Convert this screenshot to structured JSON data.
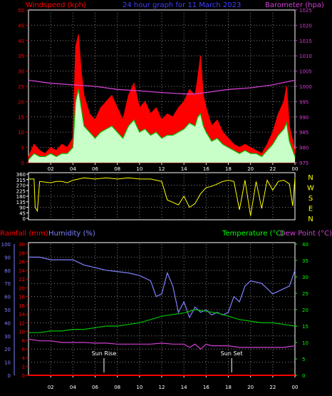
{
  "colors": {
    "background": "#000000",
    "wind": "#ff0000",
    "gust_fill": "#ff0000",
    "wind_light": "#c8ffc8",
    "wind_avg": "#00c000",
    "pressure": "#d040d0",
    "direction": "#ffff00",
    "humidity": "#8080ff",
    "temperature": "#00c000",
    "dewpoint": "#d040d0",
    "rainfall": "#ff0000",
    "right_green": "#00ff00",
    "white": "#ffffff",
    "title_blue": "#4040ff"
  },
  "chart_data": [
    {
      "type": "area",
      "title": "24 hour graph for  11 March 2023",
      "left_axis_label": "Windspeed (kph)",
      "right_axis_label": "Barometer (hpa)",
      "x_tick_labels": [
        "02",
        "04",
        "06",
        "08",
        "10",
        "12",
        "14",
        "16",
        "18",
        "20",
        "22",
        "00"
      ],
      "x_range": [
        0,
        24
      ],
      "y_left_ticks": [
        0,
        5,
        10,
        15,
        20,
        25,
        30,
        35,
        40,
        45,
        50
      ],
      "y_left_range": [
        0,
        50
      ],
      "y_right_ticks": [
        975,
        980,
        985,
        990,
        995,
        1000,
        1005,
        1010,
        1015,
        1020,
        1025
      ],
      "y_right_range": [
        975,
        1025
      ],
      "grid": true,
      "series": [
        {
          "name": "Gust",
          "x": [
            0,
            0.5,
            1,
            1.5,
            2,
            2.5,
            3,
            3.5,
            4,
            4.25,
            4.5,
            4.75,
            5,
            5.5,
            6,
            6.5,
            7,
            7.5,
            8,
            8.5,
            9,
            9.5,
            10,
            10.5,
            11,
            11.5,
            12,
            12.5,
            13,
            13.5,
            14,
            14.5,
            15,
            15.25,
            15.5,
            15.75,
            16,
            16.5,
            17,
            17.5,
            18,
            18.5,
            19,
            19.5,
            20,
            20.5,
            21,
            21.5,
            22,
            22.5,
            23,
            23.25,
            23.5,
            24
          ],
          "values": [
            2,
            6,
            4,
            3,
            5,
            4,
            6,
            5,
            8,
            38,
            42,
            30,
            22,
            16,
            14,
            18,
            20,
            22,
            18,
            14,
            22,
            26,
            18,
            20,
            16,
            18,
            14,
            16,
            15,
            18,
            20,
            24,
            22,
            28,
            35,
            22,
            18,
            12,
            14,
            10,
            8,
            6,
            5,
            6,
            5,
            4,
            3,
            6,
            10,
            16,
            20,
            25,
            12,
            4
          ]
        },
        {
          "name": "Wind",
          "x": [
            0,
            0.5,
            1,
            1.5,
            2,
            2.5,
            3,
            3.5,
            4,
            4.25,
            4.5,
            4.75,
            5,
            5.5,
            6,
            6.5,
            7,
            7.5,
            8,
            8.5,
            9,
            9.5,
            10,
            10.5,
            11,
            11.5,
            12,
            12.5,
            13,
            13.5,
            14,
            14.5,
            15,
            15.25,
            15.5,
            15.75,
            16,
            16.5,
            17,
            17.5,
            18,
            18.5,
            19,
            19.5,
            20,
            20.5,
            21,
            21.5,
            22,
            22.5,
            23,
            23.25,
            23.5,
            24
          ],
          "values": [
            1,
            3,
            2,
            2,
            3,
            2,
            3,
            3,
            5,
            20,
            24,
            18,
            12,
            10,
            8,
            10,
            11,
            12,
            10,
            8,
            12,
            14,
            10,
            11,
            9,
            10,
            8,
            9,
            9,
            10,
            11,
            13,
            12,
            15,
            16,
            12,
            10,
            7,
            8,
            6,
            5,
            4,
            3,
            4,
            3,
            3,
            2,
            4,
            6,
            9,
            11,
            13,
            7,
            2
          ]
        },
        {
          "name": "Pressure",
          "x": [
            0,
            2,
            4,
            6,
            8,
            10,
            12,
            14,
            15,
            16,
            18,
            20,
            22,
            24
          ],
          "values": [
            1002,
            1001,
            1000.5,
            1000,
            999,
            998.5,
            998,
            997.5,
            997.5,
            998,
            999,
            999.5,
            1000.5,
            1002
          ]
        }
      ]
    },
    {
      "type": "line",
      "right_labels": [
        "N",
        "W",
        "S",
        "E",
        "N"
      ],
      "x_range": [
        0,
        24
      ],
      "y_ticks": [
        0,
        45,
        90,
        135,
        180,
        225,
        270,
        315,
        360
      ],
      "y_range": [
        0,
        360
      ],
      "grid": true,
      "series": [
        {
          "name": "Direction",
          "x": [
            0,
            0.5,
            0.6,
            0.8,
            1,
            2,
            2.5,
            3,
            3.5,
            4,
            5,
            6,
            7,
            8,
            9,
            10,
            11,
            11.5,
            12,
            12.5,
            13,
            13.5,
            14,
            14.5,
            15,
            15.5,
            16,
            16.5,
            17,
            17.5,
            18,
            18.5,
            19,
            19.5,
            20,
            20.5,
            21,
            21.5,
            22,
            22.5,
            23,
            23.5,
            23.8,
            24
          ],
          "values": [
            320,
            320,
            90,
            60,
            300,
            290,
            300,
            300,
            290,
            310,
            330,
            320,
            330,
            320,
            330,
            320,
            320,
            310,
            300,
            150,
            130,
            110,
            180,
            90,
            120,
            200,
            250,
            260,
            280,
            300,
            310,
            300,
            70,
            310,
            20,
            300,
            80,
            310,
            230,
            300,
            310,
            280,
            100,
            330
          ]
        }
      ]
    },
    {
      "type": "line",
      "left_axis_label": "Rainfall (mm)",
      "left_axis_label_2": "Humidity (%)",
      "right_axis_label": "Temperature (°C)",
      "right_axis_label_2": "Dew Point (°C)",
      "x_tick_labels": [
        "02",
        "04",
        "06",
        "08",
        "10",
        "12",
        "14",
        "16",
        "18",
        "20",
        "22",
        "00"
      ],
      "x_range": [
        0,
        24
      ],
      "y_humidity_ticks": [
        0,
        10,
        20,
        30,
        40,
        50,
        60,
        70,
        80,
        90,
        100
      ],
      "y_rain_ticks": [
        0,
        2,
        4,
        6,
        8,
        10,
        12,
        14,
        16,
        18,
        20,
        22,
        24,
        26,
        28,
        30
      ],
      "y_temp_ticks": [
        0,
        5,
        10,
        15,
        20,
        25,
        30,
        35,
        40
      ],
      "y_temp_range": [
        0,
        40
      ],
      "annotations": [
        {
          "label": "Sun Rise",
          "x": 6.8
        },
        {
          "label": "Sun Set",
          "x": 18.3
        }
      ],
      "grid": true,
      "series": [
        {
          "name": "Humidity",
          "axis": "humidity",
          "x": [
            0,
            1,
            2,
            3,
            4,
            5,
            6,
            7,
            8,
            9,
            10,
            11,
            11.5,
            12,
            12.5,
            13,
            13.5,
            14,
            14.5,
            15,
            15.5,
            16,
            16.5,
            17,
            17.5,
            18,
            18.5,
            19,
            19.5,
            20,
            21,
            22,
            23,
            23.5,
            24
          ],
          "values": [
            90,
            90,
            88,
            88,
            88,
            84,
            82,
            80,
            79,
            78,
            76,
            72,
            60,
            62,
            78,
            68,
            48,
            56,
            44,
            52,
            48,
            50,
            46,
            48,
            46,
            48,
            60,
            56,
            68,
            72,
            70,
            62,
            66,
            68,
            80
          ]
        },
        {
          "name": "Temperature",
          "axis": "temperature",
          "x": [
            0,
            1,
            2,
            3,
            4,
            5,
            6,
            7,
            8,
            9,
            10,
            11,
            12,
            13,
            14,
            15,
            16,
            17,
            18,
            19,
            20,
            21,
            22,
            23,
            24
          ],
          "values": [
            13,
            13,
            13.5,
            13.5,
            14,
            14,
            14.5,
            15,
            15,
            15.5,
            16,
            17,
            18,
            18.5,
            19,
            20,
            19.5,
            19,
            18,
            17,
            16.5,
            16,
            16,
            15.5,
            15
          ]
        },
        {
          "name": "Dew Point",
          "axis": "temperature",
          "x": [
            0,
            1,
            2,
            3,
            4,
            5,
            6,
            7,
            8,
            9,
            10,
            11,
            12,
            13,
            14,
            14.5,
            15,
            15.5,
            16,
            16.5,
            17,
            18,
            19,
            20,
            21,
            22,
            23,
            24
          ],
          "values": [
            11,
            10.5,
            10.5,
            10,
            10,
            10,
            9.8,
            9.8,
            9.5,
            9.5,
            9.5,
            9.5,
            9.8,
            9.5,
            9.5,
            8.5,
            9.5,
            8,
            9.5,
            9,
            9,
            9,
            8.5,
            8.5,
            8.5,
            8.5,
            8.5,
            9
          ]
        },
        {
          "name": "Rainfall",
          "axis": "rain",
          "x": [
            0,
            24
          ],
          "values": [
            0,
            0
          ]
        }
      ]
    }
  ]
}
